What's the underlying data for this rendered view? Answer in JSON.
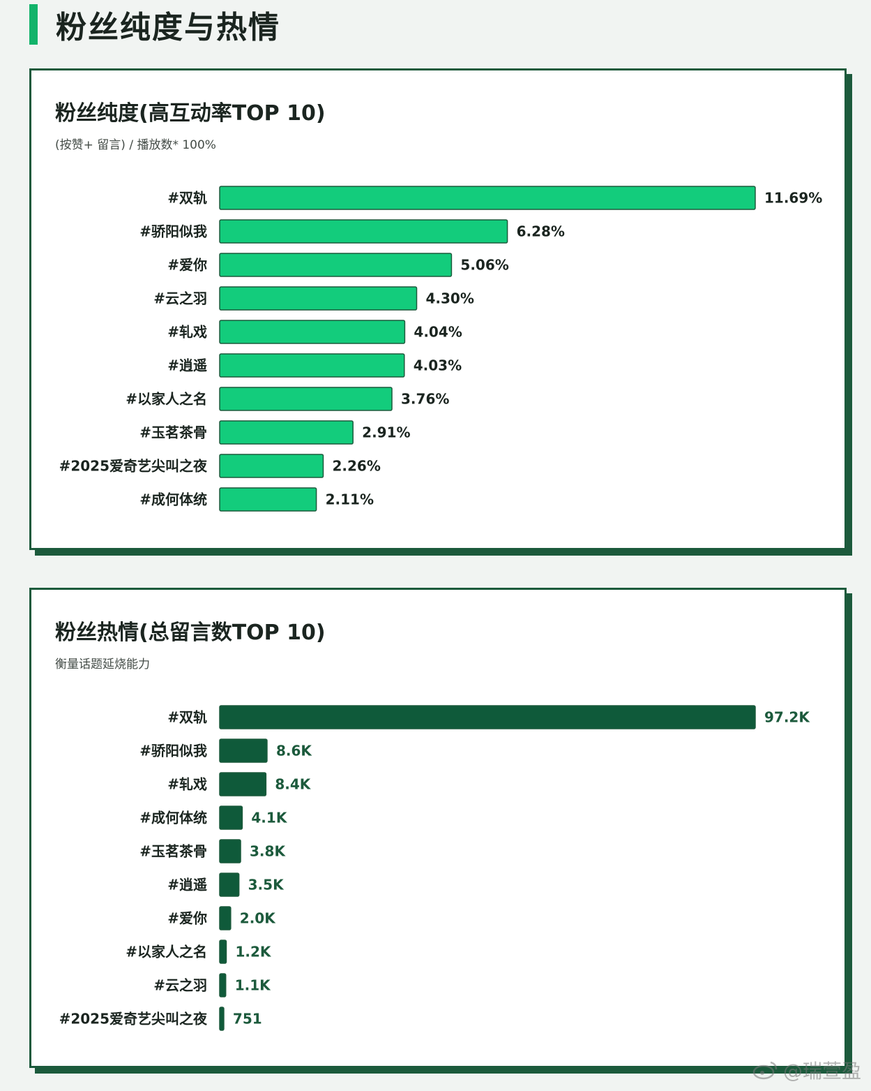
{
  "page": {
    "title": "粉丝纯度与热情"
  },
  "watermark": "@瑞萱盈",
  "colors": {
    "accent": "#12b36a",
    "bar_light": "#13cc7c",
    "bar_dark": "#0f5a3a",
    "border": "#1c5a3c"
  },
  "chart_data": [
    {
      "type": "bar",
      "orientation": "horizontal",
      "title": "粉丝纯度(高互动率TOP 10)",
      "subtitle": "(按赞+ 留言) / 播放数* 100%",
      "categories": [
        "#双轨",
        "#骄阳似我",
        "#爱你",
        "#云之羽",
        "#轧戏",
        "#逍遥",
        "#以家人之名",
        "#玉茗茶骨",
        "#2025爱奇艺尖叫之夜",
        "#成何体统"
      ],
      "values": [
        11.69,
        6.28,
        5.06,
        4.3,
        4.04,
        4.03,
        3.76,
        2.91,
        2.26,
        2.11
      ],
      "value_labels": [
        "11.69%",
        "6.28%",
        "5.06%",
        "4.30%",
        "4.04%",
        "4.03%",
        "3.76%",
        "2.91%",
        "2.26%",
        "2.11%"
      ],
      "color": "#13cc7c",
      "xlim": [
        0,
        11.69
      ],
      "grid": false
    },
    {
      "type": "bar",
      "orientation": "horizontal",
      "title": "粉丝热情(总留言数TOP 10)",
      "subtitle": "衡量话题延烧能力",
      "categories": [
        "#双轨",
        "#骄阳似我",
        "#轧戏",
        "#成何体统",
        "#玉茗茶骨",
        "#逍遥",
        "#爱你",
        "#以家人之名",
        "#云之羽",
        "#2025爱奇艺尖叫之夜"
      ],
      "values": [
        97200,
        8600,
        8400,
        4100,
        3800,
        3500,
        2000,
        1200,
        1100,
        751
      ],
      "value_labels": [
        "97.2K",
        "8.6K",
        "8.4K",
        "4.1K",
        "3.8K",
        "3.5K",
        "2.0K",
        "1.2K",
        "1.1K",
        "751"
      ],
      "color": "#0f5a3a",
      "xlim": [
        0,
        97200
      ],
      "grid": false
    }
  ]
}
